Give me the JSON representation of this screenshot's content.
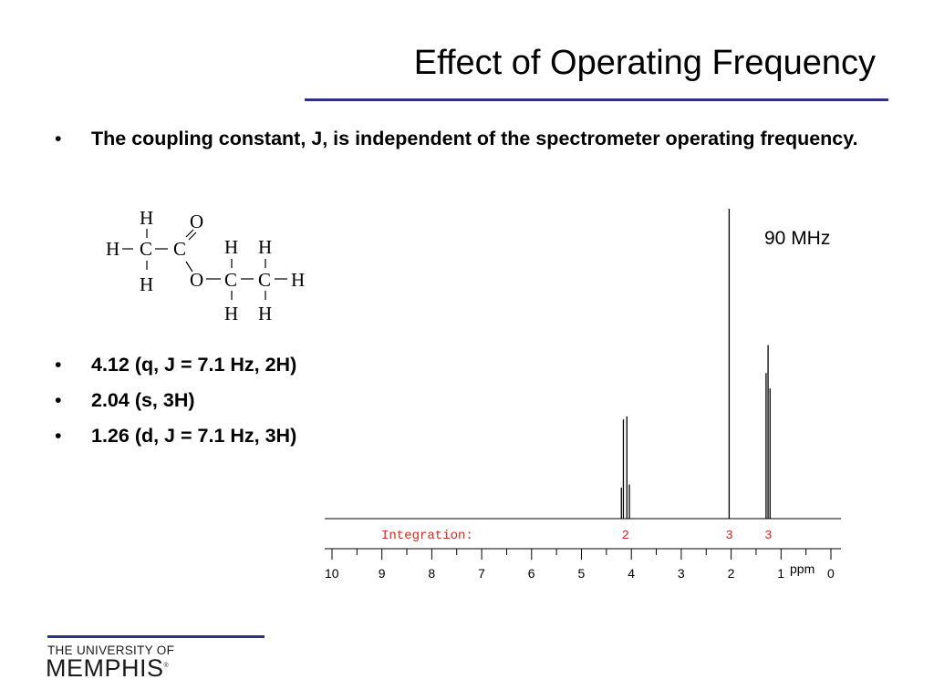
{
  "slide": {
    "title": "Effect of Operating Frequency",
    "bullet_char": "•",
    "intro_bullet": "The coupling constant, J, is independent of the spectrometer operating frequency.",
    "peak_bullets": [
      "4.12 (q, J = 7.1 Hz, 2H)",
      "2.04 (s, 3H)",
      "1.26 (d, J = 7.1 Hz, 3H)"
    ]
  },
  "molecule": {
    "atoms": {
      "H": "H",
      "C": "C",
      "O": "O"
    }
  },
  "spectrum": {
    "frequency_label": "90 MHz",
    "integration_label": "Integration:",
    "integration_values": [
      "2",
      "3",
      "3"
    ],
    "axis_unit": "ppm",
    "tick_labels": [
      "10",
      "9",
      "8",
      "7",
      "6",
      "5",
      "4",
      "3",
      "2",
      "1",
      "0"
    ],
    "colors": {
      "integration": "#d62a1e",
      "spectrum": "#000000"
    }
  },
  "chart_data": {
    "type": "line",
    "title": "",
    "xlabel": "ppm",
    "ylabel": "",
    "xlim": [
      10,
      0
    ],
    "x_reversed": true,
    "peaks_ppm": [
      4.12,
      2.04,
      1.26
    ],
    "integration": [
      2,
      3,
      3
    ],
    "series": [
      {
        "values": [
          {
            "ppm": 4.2,
            "height": 0.1
          },
          {
            "ppm": 4.16,
            "height": 0.32
          },
          {
            "ppm": 4.09,
            "height": 0.33
          },
          {
            "ppm": 4.04,
            "height": 0.11
          },
          {
            "ppm": 2.04,
            "height": 1.0
          },
          {
            "ppm": 1.3,
            "height": 0.47
          },
          {
            "ppm": 1.26,
            "height": 0.56
          },
          {
            "ppm": 1.22,
            "height": 0.42
          }
        ]
      }
    ]
  },
  "footer": {
    "university_top": "THE UNIVERSITY OF",
    "university_main": "MEMPHIS",
    "registered": "®"
  }
}
